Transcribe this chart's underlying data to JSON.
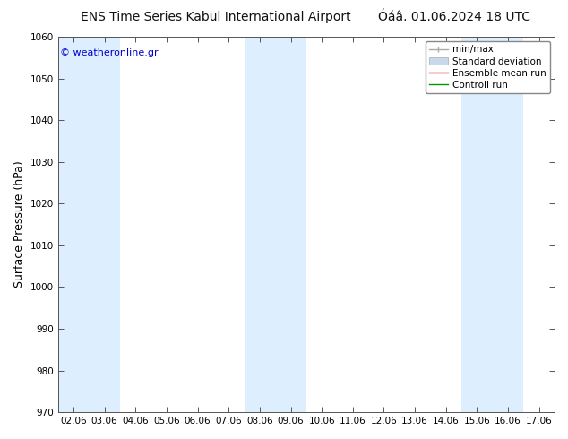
{
  "title_left": "ENS Time Series Kabul International Airport",
  "title_right": "Óáâ. 01.06.2024 18 UTC",
  "ylabel": "Surface Pressure (hPa)",
  "ylim": [
    970,
    1060
  ],
  "yticks": [
    970,
    980,
    990,
    1000,
    1010,
    1020,
    1030,
    1040,
    1050,
    1060
  ],
  "x_labels": [
    "02.06",
    "03.06",
    "04.06",
    "05.06",
    "06.06",
    "07.06",
    "08.06",
    "09.06",
    "10.06",
    "11.06",
    "12.06",
    "13.06",
    "14.06",
    "15.06",
    "16.06",
    "17.06"
  ],
  "shaded_indices": [
    0,
    1,
    6,
    7,
    13,
    14
  ],
  "shade_color": "#ddeeff",
  "bg_color": "#ffffff",
  "plot_bg_color": "#ffffff",
  "watermark": "© weatheronline.gr",
  "watermark_color": "#0000cc",
  "legend_items": [
    {
      "label": "min/max",
      "color": "#aaaaaa",
      "lw": 1.0,
      "style": "-"
    },
    {
      "label": "Standard deviation",
      "color": "#c8daea",
      "lw": 6,
      "style": "-"
    },
    {
      "label": "Ensemble mean run",
      "color": "#cc0000",
      "lw": 1.0,
      "style": "-"
    },
    {
      "label": "Controll run",
      "color": "#009900",
      "lw": 1.0,
      "style": "-"
    }
  ],
  "title_fontsize": 10,
  "tick_fontsize": 7.5,
  "ylabel_fontsize": 9,
  "legend_fontsize": 7.5
}
